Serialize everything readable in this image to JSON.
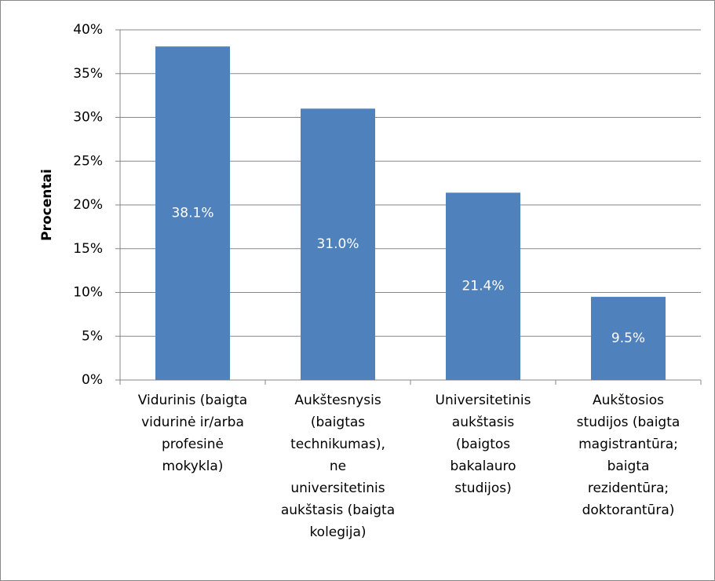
{
  "chart_data": {
    "type": "bar",
    "y_label": "Procentai",
    "categories": [
      "Vidurinis (baigta\nvidurinė ir/arba\nprofesinė\nmokykla)",
      "Aukštesnysis\n(baigtas\ntechnikumas),\nne\nuniversitetinis\naukštasis (baigta\nkolegija)",
      "Universitetinis\naukštasis\n(baigtos\nbakalauro\nstudijos)",
      "Aukštosios\nstudijos (baigta\nmagistrantūra;\nbaigta\nrezidentūra;\ndoktorantūra)"
    ],
    "values": [
      38.1,
      31.0,
      21.4,
      9.5
    ],
    "value_labels": [
      "38.1%",
      "31.0%",
      "21.4%",
      "9.5%"
    ],
    "color": "#4f81bd",
    "ylim": [
      0,
      40
    ],
    "yticks": [
      {
        "value": 0,
        "label": "0%"
      },
      {
        "value": 5,
        "label": "5%"
      },
      {
        "value": 10,
        "label": "10%"
      },
      {
        "value": 15,
        "label": "15%"
      },
      {
        "value": 20,
        "label": "20%"
      },
      {
        "value": 25,
        "label": "25%"
      },
      {
        "value": 30,
        "label": "30%"
      },
      {
        "value": 35,
        "label": "35%"
      },
      {
        "value": 40,
        "label": "40%"
      }
    ],
    "grid": true
  }
}
